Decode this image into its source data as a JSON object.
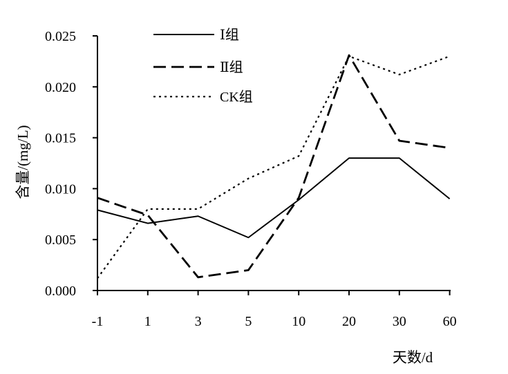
{
  "chart_data": {
    "type": "line",
    "title": "",
    "xlabel": "天数/d",
    "ylabel": "含量/(mg/L)",
    "categories": [
      "-1",
      "1",
      "3",
      "5",
      "10",
      "20",
      "30",
      "60"
    ],
    "ylim": [
      0,
      0.025
    ],
    "yticks": [
      "0.000",
      "0.005",
      "0.010",
      "0.015",
      "0.020",
      "0.025"
    ],
    "grid": false,
    "legend_position": "top-center",
    "series": [
      {
        "name": "Ⅰ组",
        "style": "solid",
        "values": [
          0.0079,
          0.0066,
          0.0073,
          0.0052,
          0.0089,
          0.013,
          0.013,
          0.009
        ]
      },
      {
        "name": "Ⅱ组",
        "style": "dashed",
        "values": [
          0.0091,
          0.0074,
          0.0013,
          0.002,
          0.0091,
          0.0231,
          0.0147,
          0.014
        ]
      },
      {
        "name": "CK组",
        "style": "dotted",
        "values": [
          0.0012,
          0.008,
          0.008,
          0.011,
          0.0132,
          0.023,
          0.0212,
          0.023
        ]
      }
    ]
  }
}
